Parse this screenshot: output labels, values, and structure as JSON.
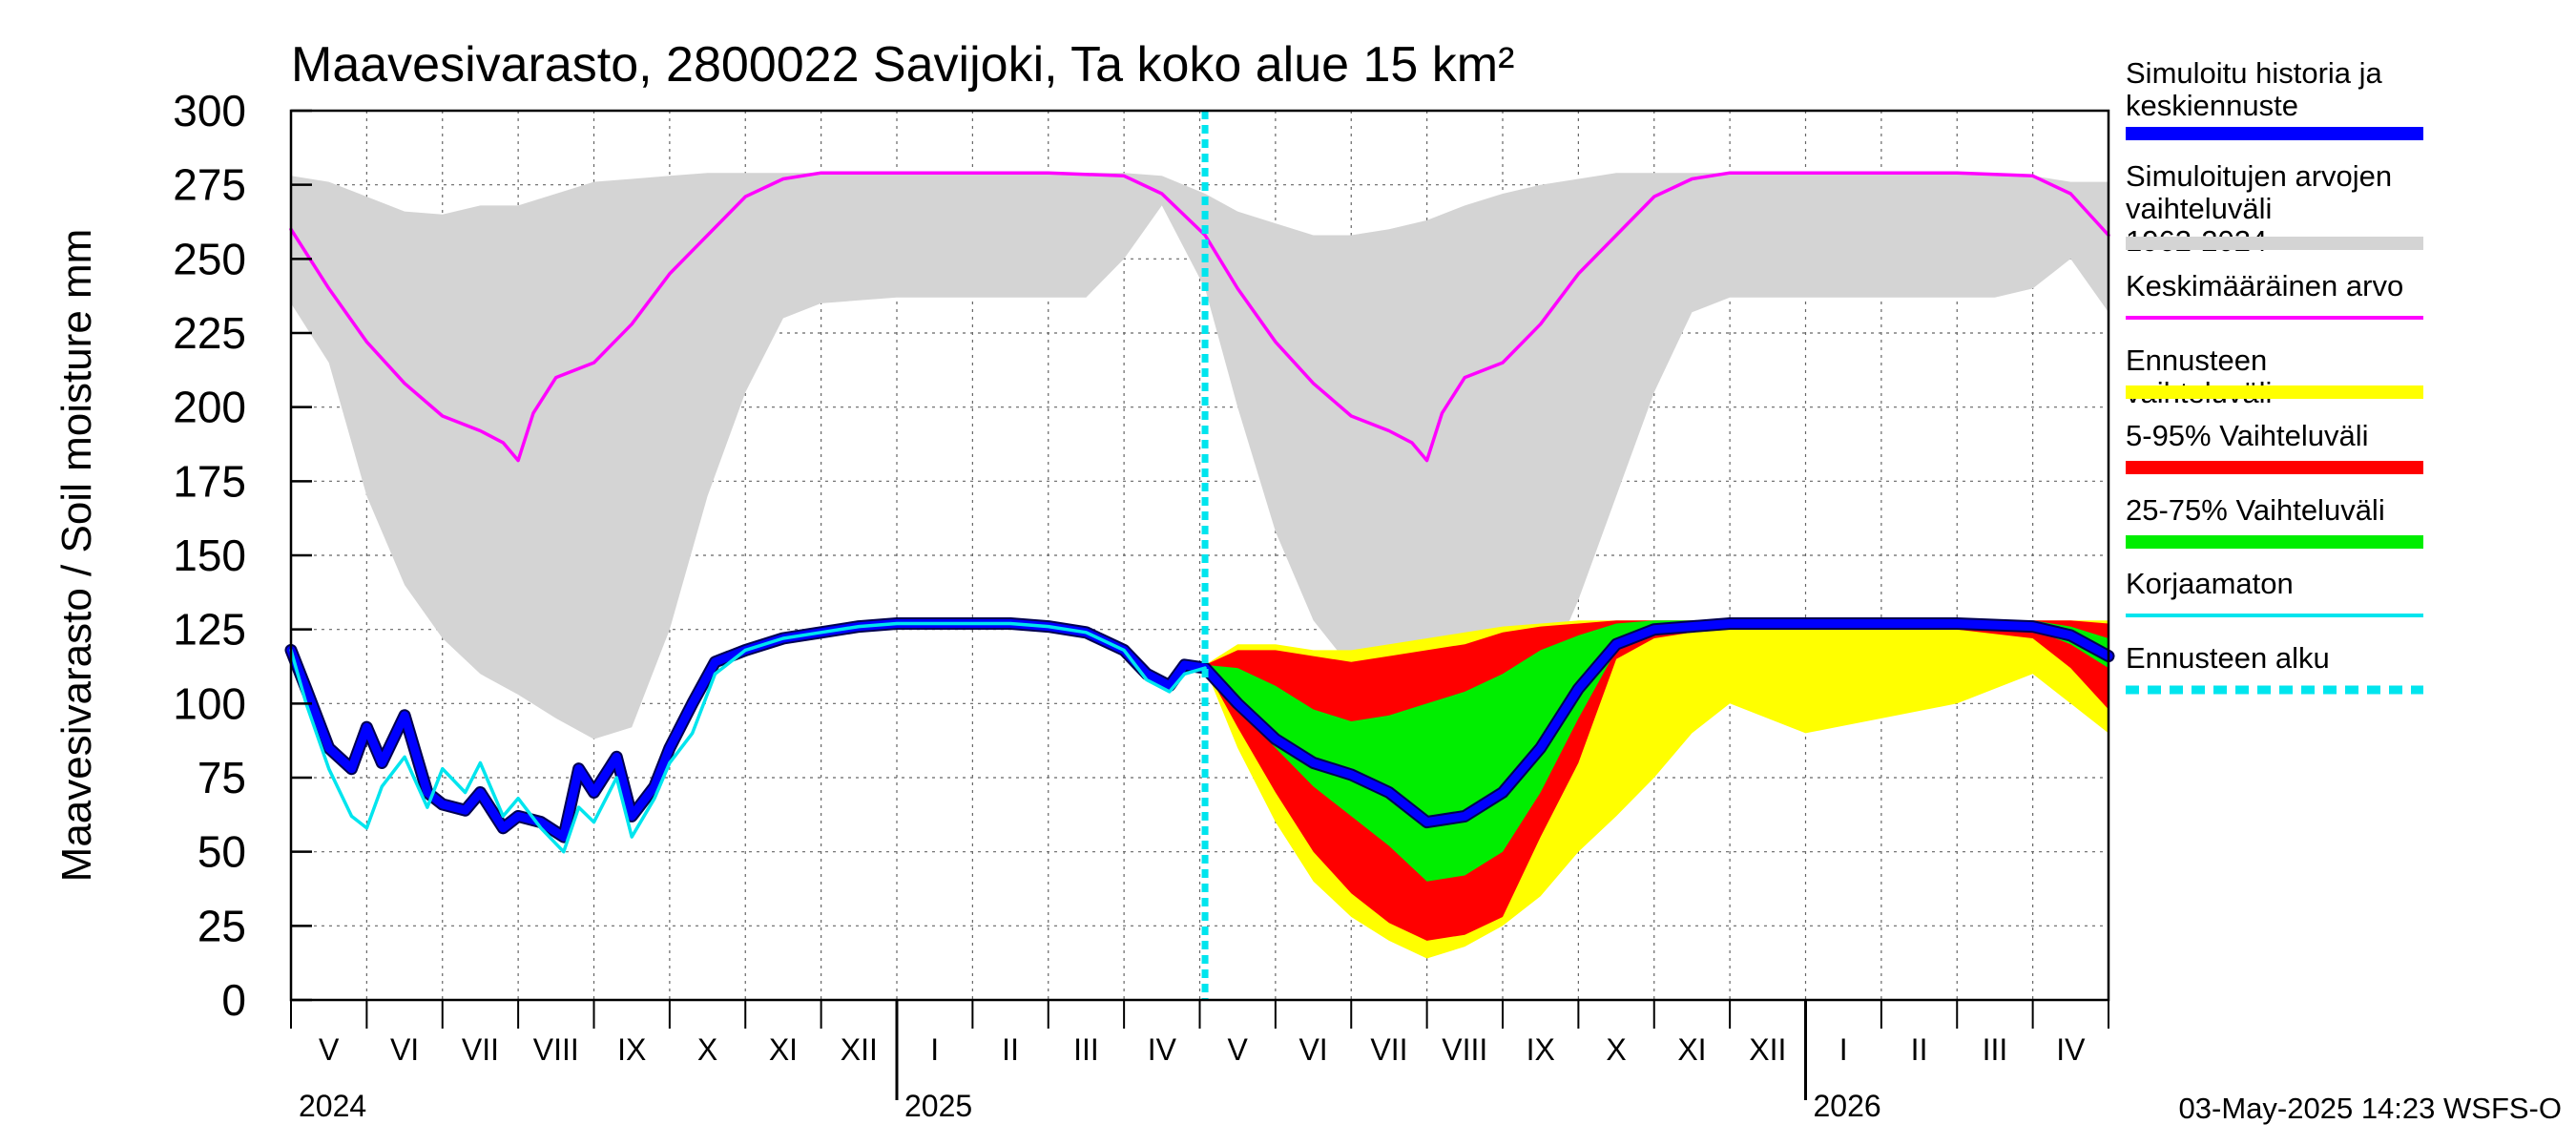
{
  "chart_data": {
    "type": "area",
    "title": "Maavesivarasto, 2800022 Savijoki, Ta koko alue 15 km²",
    "ylabel": "Maavesivarasto / Soil moisture   mm",
    "xlabel": "",
    "ylim": [
      0,
      300
    ],
    "yticks": [
      "0",
      "25",
      "50",
      "75",
      "100",
      "125",
      "150",
      "175",
      "200",
      "225",
      "250",
      "275",
      "300"
    ],
    "x_unit": "months since 2024-04-01",
    "xlim": [
      1.0,
      25.0
    ],
    "month_labels": [
      "V",
      "VI",
      "VII",
      "VIII",
      "IX",
      "X",
      "XI",
      "XII",
      "I",
      "II",
      "III",
      "IV",
      "V",
      "VI",
      "VII",
      "VIII",
      "IX",
      "X",
      "XI",
      "XII",
      "I",
      "II",
      "III",
      "IV"
    ],
    "year_labels": [
      {
        "label": "2024",
        "x": 1.0
      },
      {
        "label": "2025",
        "x": 9.0
      },
      {
        "label": "2026",
        "x": 21.0
      }
    ],
    "forecast_start_x": 13.07,
    "timestamp": "03-May-2025 14:23 WSFS-O",
    "colors": {
      "history": "#0000ff",
      "range_hist": "#d4d4d4",
      "mean": "#ff00ff",
      "forecast_range": "#ffff00",
      "p5_95": "#ff0000",
      "p25_75": "#00ee00",
      "uncorrected": "#00e5ee",
      "forecast_start": "#00e5ee"
    },
    "legend": [
      {
        "label": "Simuloitu historia ja keskiennuste",
        "color": "#0000ff",
        "style": "thick"
      },
      {
        "label": "Simuloitujen arvojen vaihteluväli 1962-2024",
        "color": "#d4d4d4",
        "style": "thick"
      },
      {
        "label": "Keskimääräinen arvo",
        "color": "#ff00ff",
        "style": "thin"
      },
      {
        "label": "Ennusteen vaihteluväli",
        "color": "#ffff00",
        "style": "thick"
      },
      {
        "label": "5-95% Vaihteluväli",
        "color": "#ff0000",
        "style": "thick"
      },
      {
        "label": "25-75% Vaihteluväli",
        "color": "#00ee00",
        "style": "thick"
      },
      {
        "label": "Korjaamaton",
        "color": "#00e5ee",
        "style": "thin"
      },
      {
        "label": "Ennusteen alku",
        "color": "#00e5ee",
        "style": "dashed"
      }
    ],
    "series": [
      {
        "name": "Simuloitujen arvojen vaihteluväli 1962-2024",
        "kind": "band",
        "x": [
          1.0,
          1.5,
          2.0,
          2.5,
          3.0,
          3.5,
          4.0,
          4.5,
          5.0,
          5.5,
          6.0,
          6.5,
          7.0,
          7.5,
          8.0,
          9.0,
          10.0,
          10.5,
          11.0,
          11.5,
          12.0,
          12.5,
          13.07,
          13.5,
          14.0,
          14.5,
          15.0,
          15.5,
          16.0,
          16.5,
          17.0,
          17.5,
          18.0,
          18.5,
          19.0,
          19.5,
          20.0,
          21.0,
          22.0,
          22.5,
          23.0,
          23.5,
          24.0,
          24.5,
          25.0
        ],
        "low": [
          235,
          215,
          170,
          140,
          122,
          110,
          103,
          95,
          88,
          92,
          125,
          170,
          205,
          230,
          235,
          237,
          237,
          237,
          237,
          237,
          250,
          268,
          240,
          200,
          158,
          128,
          112,
          104,
          98,
          92,
          95,
          105,
          135,
          170,
          205,
          232,
          237,
          237,
          237,
          237,
          237,
          237,
          240,
          250,
          232
        ],
        "high": [
          278,
          276,
          271,
          266,
          265,
          268,
          268,
          272,
          276,
          277,
          278,
          279,
          279,
          279,
          279,
          279,
          279,
          279,
          279,
          279,
          279,
          278,
          272,
          266,
          262,
          258,
          258,
          260,
          263,
          268,
          272,
          275,
          277,
          279,
          279,
          279,
          279,
          279,
          279,
          279,
          279,
          279,
          278,
          276,
          276
        ]
      },
      {
        "name": "Keskimääräinen arvo",
        "kind": "line",
        "x": [
          1.0,
          1.5,
          2.0,
          2.5,
          3.0,
          3.5,
          3.8,
          4.0,
          4.2,
          4.5,
          5.0,
          5.5,
          6.0,
          6.5,
          7.0,
          7.5,
          8.0,
          9.0,
          10.0,
          11.0,
          12.0,
          12.5,
          13.07,
          13.5,
          14.0,
          14.5,
          15.0,
          15.5,
          15.8,
          16.0,
          16.2,
          16.5,
          17.0,
          17.5,
          18.0,
          18.5,
          19.0,
          19.5,
          20.0,
          21.0,
          22.0,
          23.0,
          24.0,
          24.5,
          25.0
        ],
        "y": [
          260,
          240,
          222,
          208,
          197,
          192,
          188,
          182,
          198,
          210,
          215,
          228,
          245,
          258,
          271,
          277,
          279,
          279,
          279,
          279,
          278,
          272,
          258,
          240,
          222,
          208,
          197,
          192,
          188,
          182,
          198,
          210,
          215,
          228,
          245,
          258,
          271,
          277,
          279,
          279,
          279,
          279,
          278,
          272,
          258
        ]
      },
      {
        "name": "Korjaamaton",
        "kind": "line",
        "x": [
          1.0,
          1.2,
          1.5,
          1.8,
          2.0,
          2.2,
          2.5,
          2.8,
          3.0,
          3.3,
          3.5,
          3.8,
          4.0,
          4.3,
          4.6,
          4.8,
          5.0,
          5.3,
          5.5,
          5.8,
          6.0,
          6.3,
          6.6,
          7.0,
          7.5,
          8.0,
          8.5,
          9.0,
          9.5,
          10.0,
          10.5,
          11.0,
          11.5,
          12.0,
          12.3,
          12.6,
          12.8,
          13.07
        ],
        "y": [
          118,
          100,
          78,
          62,
          58,
          72,
          82,
          65,
          78,
          70,
          80,
          62,
          68,
          58,
          50,
          65,
          60,
          75,
          55,
          68,
          80,
          90,
          110,
          118,
          122,
          124,
          126,
          127,
          127,
          127,
          127,
          126,
          124,
          118,
          108,
          104,
          110,
          112
        ]
      },
      {
        "name": "Ennusteen vaihteluväli",
        "kind": "band",
        "x": [
          13.07,
          13.5,
          14.0,
          14.5,
          15.0,
          15.5,
          16.0,
          16.5,
          17.0,
          17.5,
          18.0,
          18.5,
          19.0,
          19.5,
          20.0,
          21.0,
          22.0,
          23.0,
          24.0,
          24.5,
          25.0
        ],
        "low": [
          112,
          85,
          60,
          40,
          28,
          20,
          14,
          18,
          25,
          35,
          50,
          62,
          75,
          90,
          100,
          90,
          95,
          100,
          110,
          100,
          90
        ],
        "high": [
          113,
          120,
          120,
          118,
          118,
          120,
          122,
          124,
          126,
          127,
          128,
          128,
          128,
          128,
          128,
          128,
          128,
          128,
          128,
          128,
          128
        ]
      },
      {
        "name": "5-95% Vaihteluväli",
        "kind": "band",
        "x": [
          13.07,
          13.5,
          14.0,
          14.5,
          15.0,
          15.5,
          16.0,
          16.5,
          17.0,
          17.5,
          18.0,
          18.5,
          19.0,
          19.5,
          20.0,
          21.0,
          22.0,
          23.0,
          24.0,
          24.5,
          25.0
        ],
        "low": [
          112,
          92,
          70,
          50,
          36,
          26,
          20,
          22,
          28,
          55,
          80,
          115,
          122,
          124,
          125,
          125,
          125,
          125,
          122,
          112,
          98
        ],
        "high": [
          113,
          118,
          118,
          116,
          114,
          116,
          118,
          120,
          124,
          126,
          127,
          128,
          128,
          128,
          128,
          128,
          128,
          128,
          128,
          128,
          127
        ]
      },
      {
        "name": "25-75% Vaihteluväli",
        "kind": "band",
        "x": [
          13.07,
          13.5,
          14.0,
          14.5,
          15.0,
          15.5,
          16.0,
          16.5,
          17.0,
          17.5,
          18.0,
          18.5,
          19.0,
          19.5,
          20.0,
          21.0,
          22.0,
          23.0,
          24.0,
          24.5,
          25.0
        ],
        "low": [
          112,
          98,
          85,
          72,
          62,
          52,
          40,
          42,
          50,
          70,
          95,
          118,
          125,
          126,
          127,
          127,
          127,
          127,
          125,
          120,
          112
        ],
        "high": [
          113,
          112,
          106,
          98,
          94,
          96,
          100,
          104,
          110,
          118,
          123,
          127,
          128,
          128,
          128,
          128,
          128,
          128,
          128,
          126,
          122
        ]
      },
      {
        "name": "Simuloitu historia ja keskiennuste",
        "kind": "line",
        "x": [
          1.0,
          1.2,
          1.5,
          1.8,
          2.0,
          2.2,
          2.5,
          2.8,
          3.0,
          3.3,
          3.5,
          3.8,
          4.0,
          4.3,
          4.6,
          4.8,
          5.0,
          5.3,
          5.5,
          5.8,
          6.0,
          6.3,
          6.6,
          7.0,
          7.5,
          8.0,
          8.5,
          9.0,
          9.5,
          10.0,
          10.5,
          11.0,
          11.5,
          12.0,
          12.3,
          12.6,
          12.8,
          13.07,
          13.5,
          14.0,
          14.5,
          15.0,
          15.5,
          16.0,
          16.5,
          17.0,
          17.5,
          18.0,
          18.5,
          19.0,
          19.5,
          20.0,
          21.0,
          22.0,
          23.0,
          24.0,
          24.5,
          25.0
        ],
        "y": [
          118,
          105,
          85,
          78,
          92,
          80,
          96,
          70,
          66,
          64,
          70,
          58,
          62,
          60,
          55,
          78,
          70,
          82,
          62,
          72,
          85,
          100,
          114,
          118,
          122,
          124,
          126,
          127,
          127,
          127,
          127,
          126,
          124,
          118,
          110,
          106,
          113,
          112,
          100,
          88,
          80,
          76,
          70,
          60,
          62,
          70,
          85,
          105,
          120,
          125,
          126,
          127,
          127,
          127,
          127,
          126,
          123,
          116
        ]
      }
    ]
  }
}
